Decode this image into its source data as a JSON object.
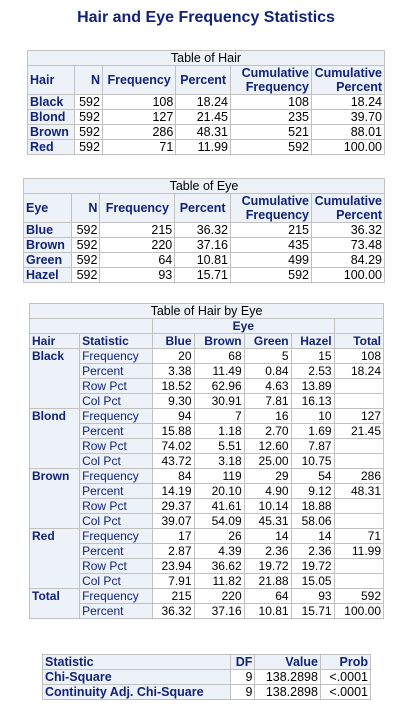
{
  "title": "Hair and Eye Frequency Statistics",
  "hair_table": {
    "caption": "Table of Hair",
    "headers": [
      "Hair",
      "N",
      "Frequency",
      "Percent",
      "Cumulative Frequency",
      "Cumulative Percent"
    ],
    "rows": [
      [
        "Black",
        "592",
        "108",
        "18.24",
        "108",
        "18.24"
      ],
      [
        "Blond",
        "592",
        "127",
        "21.45",
        "235",
        "39.70"
      ],
      [
        "Brown",
        "592",
        "286",
        "48.31",
        "521",
        "88.01"
      ],
      [
        "Red",
        "592",
        "71",
        "11.99",
        "592",
        "100.00"
      ]
    ]
  },
  "eye_table": {
    "caption": "Table of Eye",
    "headers": [
      "Eye",
      "N",
      "Frequency",
      "Percent",
      "Cumulative Frequency",
      "Cumulative Percent"
    ],
    "rows": [
      [
        "Blue",
        "592",
        "215",
        "36.32",
        "215",
        "36.32"
      ],
      [
        "Brown",
        "592",
        "220",
        "37.16",
        "435",
        "73.48"
      ],
      [
        "Green",
        "592",
        "64",
        "10.81",
        "499",
        "84.29"
      ],
      [
        "Hazel",
        "592",
        "93",
        "15.71",
        "592",
        "100.00"
      ]
    ]
  },
  "cross_table": {
    "caption": "Table of Hair by Eye",
    "group_header": "Eye",
    "headers": [
      "Hair",
      "Statistic",
      "Blue",
      "Brown",
      "Green",
      "Hazel",
      "Total"
    ],
    "groups": [
      {
        "label": "Black",
        "rows": [
          [
            "Frequency",
            "20",
            "68",
            "5",
            "15",
            "108"
          ],
          [
            "Percent",
            "3.38",
            "11.49",
            "0.84",
            "2.53",
            "18.24"
          ],
          [
            "Row Pct",
            "18.52",
            "62.96",
            "4.63",
            "13.89",
            ""
          ],
          [
            "Col Pct",
            "9.30",
            "30.91",
            "7.81",
            "16.13",
            ""
          ]
        ]
      },
      {
        "label": "Blond",
        "rows": [
          [
            "Frequency",
            "94",
            "7",
            "16",
            "10",
            "127"
          ],
          [
            "Percent",
            "15.88",
            "1.18",
            "2.70",
            "1.69",
            "21.45"
          ],
          [
            "Row Pct",
            "74.02",
            "5.51",
            "12.60",
            "7.87",
            ""
          ],
          [
            "Col Pct",
            "43.72",
            "3.18",
            "25.00",
            "10.75",
            ""
          ]
        ]
      },
      {
        "label": "Brown",
        "rows": [
          [
            "Frequency",
            "84",
            "119",
            "29",
            "54",
            "286"
          ],
          [
            "Percent",
            "14.19",
            "20.10",
            "4.90",
            "9.12",
            "48.31"
          ],
          [
            "Row Pct",
            "29.37",
            "41.61",
            "10.14",
            "18.88",
            ""
          ],
          [
            "Col Pct",
            "39.07",
            "54.09",
            "45.31",
            "58.06",
            ""
          ]
        ]
      },
      {
        "label": "Red",
        "rows": [
          [
            "Frequency",
            "17",
            "26",
            "14",
            "14",
            "71"
          ],
          [
            "Percent",
            "2.87",
            "4.39",
            "2.36",
            "2.36",
            "11.99"
          ],
          [
            "Row Pct",
            "23.94",
            "36.62",
            "19.72",
            "19.72",
            ""
          ],
          [
            "Col Pct",
            "7.91",
            "11.82",
            "21.88",
            "15.05",
            ""
          ]
        ]
      },
      {
        "label": "Total",
        "rows": [
          [
            "Frequency",
            "215",
            "220",
            "64",
            "93",
            "592"
          ],
          [
            "Percent",
            "36.32",
            "37.16",
            "10.81",
            "15.71",
            "100.00"
          ]
        ]
      }
    ]
  },
  "stats_table": {
    "headers": [
      "Statistic",
      "DF",
      "Value",
      "Prob"
    ],
    "rows": [
      [
        "Chi-Square",
        "9",
        "138.2898",
        "<.0001"
      ],
      [
        "Continuity Adj. Chi-Square",
        "9",
        "138.2898",
        "<.0001"
      ]
    ]
  }
}
